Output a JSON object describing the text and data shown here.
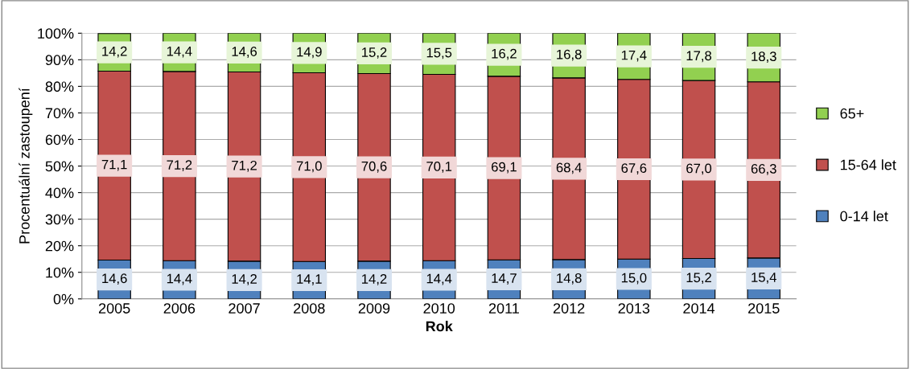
{
  "chart_data": {
    "type": "bar",
    "stacked": true,
    "xlabel": "Rok",
    "ylabel": "Procentuální zastoupení",
    "categories": [
      "2005",
      "2006",
      "2007",
      "2008",
      "2009",
      "2010",
      "2011",
      "2012",
      "2013",
      "2014",
      "2015"
    ],
    "series": [
      {
        "name": "0-14 let",
        "color": "#4f81bd",
        "values": [
          14.6,
          14.4,
          14.2,
          14.1,
          14.2,
          14.4,
          14.7,
          14.8,
          15.0,
          15.2,
          15.4
        ],
        "value_labels": [
          "14,6",
          "14,4",
          "14,2",
          "14,1",
          "14,2",
          "14,4",
          "14,7",
          "14,8",
          "15,0",
          "15,2",
          "15,4"
        ]
      },
      {
        "name": "15-64 let",
        "color": "#c0504d",
        "values": [
          71.1,
          71.2,
          71.2,
          71.0,
          70.6,
          70.1,
          69.1,
          68.4,
          67.6,
          67.0,
          66.3
        ],
        "value_labels": [
          "71,1",
          "71,2",
          "71,2",
          "71,0",
          "70,6",
          "70,1",
          "69,1",
          "68,4",
          "67,6",
          "67,0",
          "66,3"
        ]
      },
      {
        "name": "65+",
        "color": "#92d050",
        "values": [
          14.2,
          14.4,
          14.6,
          14.9,
          15.2,
          15.5,
          16.2,
          16.8,
          17.4,
          17.8,
          18.3
        ],
        "value_labels": [
          "14,2",
          "14,4",
          "14,6",
          "14,9",
          "15,2",
          "15,5",
          "16,2",
          "16,8",
          "17,4",
          "17,8",
          "18,3"
        ]
      }
    ],
    "ylim": [
      0,
      100
    ],
    "yticks": [
      {
        "value": 0,
        "label": "0%"
      },
      {
        "value": 10,
        "label": "10%"
      },
      {
        "value": 20,
        "label": "20%"
      },
      {
        "value": 30,
        "label": "30%"
      },
      {
        "value": 40,
        "label": "40%"
      },
      {
        "value": 50,
        "label": "50%"
      },
      {
        "value": 60,
        "label": "60%"
      },
      {
        "value": 70,
        "label": "70%"
      },
      {
        "value": 80,
        "label": "80%"
      },
      {
        "value": 90,
        "label": "90%"
      },
      {
        "value": 100,
        "label": "100%"
      }
    ],
    "grid": "y",
    "legend": "right"
  }
}
